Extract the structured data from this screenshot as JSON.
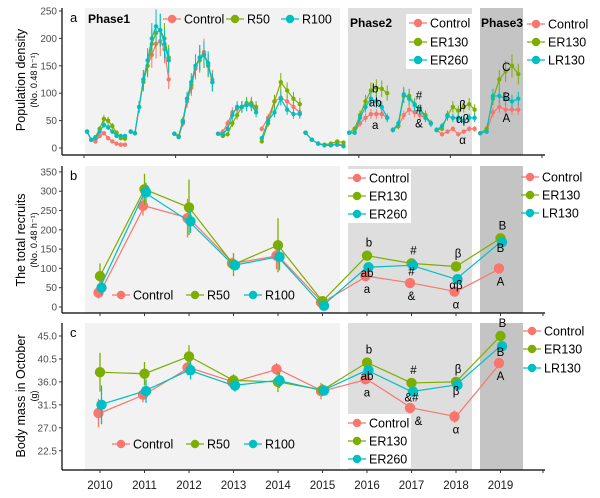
{
  "colors": {
    "Control": "#F8766D",
    "R50": "#7CAE00",
    "R100": "#00BFC4",
    "ER130": "#7CAE00",
    "ER260": "#00BFC4",
    "LR130": "#00BFC4"
  },
  "phase_backgrounds": [
    "#f2f2f2",
    "#dedede",
    "#c4c4c4"
  ],
  "years": [
    "2010",
    "2011",
    "2012",
    "2013",
    "2014",
    "2015",
    "2016",
    "2017",
    "2018",
    "2019"
  ],
  "chart_data": [
    {
      "panel": "a",
      "type": "line",
      "ylabel": "Population density",
      "ylabel_sub": "(No. 0.48 h⁻¹)",
      "ylim": [
        0,
        250
      ],
      "yticks": [
        "0",
        "50",
        "100",
        "150",
        "200",
        "250"
      ],
      "phases": [
        "Phase1",
        "Phase2",
        "Phase3"
      ],
      "legends": [
        [
          "Control",
          "R50",
          "R100"
        ],
        [
          "Control",
          "ER130",
          "ER260"
        ],
        [
          "Control",
          "ER130",
          "LR130"
        ]
      ],
      "by_year": [
        {
          "year": "2010",
          "series": [
            {
              "name": "Control",
              "values": [
                30,
                15,
                12,
                22,
                27,
                18,
                12,
                8,
                6,
                6
              ]
            },
            {
              "name": "R50",
              "values": [
                30,
                15,
                20,
                35,
                53,
                50,
                40,
                28,
                18,
                17
              ]
            },
            {
              "name": "R100",
              "values": [
                30,
                15,
                18,
                30,
                42,
                38,
                30,
                22,
                22,
                22
              ]
            }
          ]
        },
        {
          "year": "2011",
          "series": [
            {
              "name": "Control",
              "values": [
                30,
                27,
                75,
                125,
                150,
                170,
                190,
                195,
                180,
                125
              ]
            },
            {
              "name": "R50",
              "values": [
                30,
                27,
                75,
                120,
                150,
                190,
                210,
                215,
                200,
                165
              ]
            },
            {
              "name": "R100",
              "values": [
                30,
                27,
                75,
                125,
                160,
                200,
                222,
                215,
                190,
                160
              ]
            }
          ]
        },
        {
          "year": "2012",
          "series": [
            {
              "name": "Control",
              "values": [
                26,
                20,
                45,
                85,
                110,
                145,
                165,
                175,
                150,
                125
              ]
            },
            {
              "name": "R50",
              "values": [
                26,
                22,
                50,
                90,
                115,
                150,
                160,
                170,
                150,
                120
              ]
            },
            {
              "name": "R100",
              "values": [
                26,
                20,
                48,
                90,
                120,
                150,
                165,
                170,
                155,
                120
              ]
            }
          ]
        },
        {
          "year": "2013",
          "series": [
            {
              "name": "Control",
              "values": [
                26,
                30,
                45,
                65,
                72,
                75,
                80,
                80,
                70
              ]
            },
            {
              "name": "R50",
              "values": [
                26,
                22,
                25,
                45,
                60,
                75,
                82,
                82,
                75
              ]
            },
            {
              "name": "R100",
              "values": [
                26,
                25,
                35,
                60,
                75,
                75,
                78,
                78,
                65
              ]
            }
          ]
        },
        {
          "year": "2014",
          "series": [
            {
              "name": "Control",
              "values": [
                35,
                55,
                85,
                92,
                85,
                75,
                65
              ]
            },
            {
              "name": "R50",
              "values": [
                12,
                45,
                85,
                120,
                105,
                90,
                80
              ]
            },
            {
              "name": "R100",
              "values": [
                18,
                50,
                65,
                90,
                70,
                62,
                62
              ]
            }
          ]
        },
        {
          "year": "2015",
          "series": [
            {
              "name": "Control",
              "values": [
                28,
                15,
                8,
                5,
                5,
                8,
                5
              ]
            },
            {
              "name": "R50",
              "values": [
                28,
                15,
                8,
                6,
                8,
                12,
                10
              ]
            },
            {
              "name": "R100",
              "values": [
                28,
                15,
                8,
                5,
                5,
                6,
                3
              ]
            }
          ]
        },
        {
          "year": "2016",
          "series": [
            {
              "name": "Control",
              "values": [
                28,
                28,
                45,
                55,
                62,
                62,
                62,
                55
              ]
            },
            {
              "name": "ER130",
              "values": [
                28,
                35,
                60,
                85,
                105,
                110,
                108,
                100
              ]
            },
            {
              "name": "ER260",
              "values": [
                28,
                28,
                55,
                75,
                90,
                85,
                75,
                55
              ]
            }
          ]
        },
        {
          "year": "2017",
          "series": [
            {
              "name": "Control",
              "values": [
                33,
                40,
                60,
                70,
                65,
                60,
                55,
                45
              ]
            },
            {
              "name": "ER130",
              "values": [
                33,
                40,
                95,
                95,
                80,
                70,
                60,
                45
              ]
            },
            {
              "name": "ER260",
              "values": [
                33,
                45,
                98,
                90,
                78,
                70,
                55,
                45
              ]
            }
          ]
        },
        {
          "year": "2018",
          "series": [
            {
              "name": "Control",
              "values": [
                33,
                25,
                30,
                35,
                25,
                30,
                35,
                35
              ]
            },
            {
              "name": "ER130",
              "values": [
                33,
                35,
                60,
                75,
                68,
                75,
                80,
                70
              ]
            },
            {
              "name": "ER260",
              "values": [
                33,
                40,
                58,
                55,
                55,
                50,
                55,
                55
              ]
            }
          ]
        },
        {
          "year": "2019",
          "series": [
            {
              "name": "Control",
              "values": [
                27,
                30,
                65,
                75,
                70,
                70,
                70
              ]
            },
            {
              "name": "ER130",
              "values": [
                27,
                35,
                90,
                125,
                140,
                150,
                135
              ]
            },
            {
              "name": "LR130",
              "values": [
                27,
                30,
                95,
                95,
                90,
                85,
                90
              ]
            }
          ]
        }
      ],
      "letters": [
        {
          "year": "2016",
          "labels": [
            "a",
            "b",
            "ab"
          ]
        },
        {
          "year": "2017",
          "labels": [
            "&",
            "#",
            "#"
          ]
        },
        {
          "year": "2018",
          "labels": [
            "α",
            "β",
            "αβ"
          ]
        },
        {
          "year": "2019",
          "labels": [
            "A",
            "C",
            "B"
          ]
        }
      ]
    },
    {
      "panel": "b",
      "type": "line",
      "ylabel": "The total recruits",
      "ylabel_sub": "(No. 0.48 h⁻¹)",
      "ylim": [
        0,
        350
      ],
      "yticks": [
        "0",
        "50",
        "100",
        "150",
        "200",
        "250",
        "300",
        "350"
      ],
      "legends": [
        [
          "Control",
          "R50",
          "R100"
        ],
        [
          "Control",
          "ER130",
          "ER260"
        ],
        [
          "Control",
          "ER130",
          "LR130"
        ]
      ],
      "series": [
        {
          "names": [
            "Control",
            "Control",
            "Control"
          ],
          "values": [
            37,
            262,
            230,
            113,
            133,
            12,
            80,
            62,
            40,
            100
          ],
          "err": [
            15,
            25,
            50,
            15,
            35,
            8,
            8,
            6,
            6,
            6
          ]
        },
        {
          "names": [
            "R50",
            "ER130",
            "ER130"
          ],
          "values": [
            80,
            305,
            258,
            110,
            160,
            15,
            133,
            113,
            105,
            178
          ],
          "err": [
            33,
            40,
            72,
            30,
            70,
            10,
            8,
            8,
            10,
            12
          ]
        },
        {
          "names": [
            "R100",
            "ER260",
            "LR130"
          ],
          "values": [
            50,
            297,
            222,
            108,
            130,
            3,
            103,
            108,
            72,
            168
          ],
          "err": [
            20,
            25,
            30,
            12,
            35,
            5,
            8,
            8,
            10,
            8
          ]
        }
      ],
      "letters": [
        {
          "year": "2016",
          "labels": [
            "a",
            "b",
            "ab"
          ]
        },
        {
          "year": "2017",
          "labels": [
            "&",
            "#",
            "#"
          ]
        },
        {
          "year": "2018",
          "labels": [
            "α",
            "β",
            "αβ"
          ]
        },
        {
          "year": "2019",
          "labels": [
            "A",
            "B",
            "B"
          ]
        }
      ]
    },
    {
      "panel": "c",
      "type": "line",
      "ylabel": "Body mass in October",
      "ylabel_sub": "(g)",
      "ylim": [
        22.5,
        45
      ],
      "yticks": [
        "22.5",
        "27.0",
        "31.5",
        "36.0",
        "40.5",
        "45.0"
      ],
      "legends": [
        [
          "Control",
          "R50",
          "R100"
        ],
        [
          "Control",
          "ER130",
          "ER260"
        ],
        [
          "Control",
          "ER130",
          "LR130"
        ]
      ],
      "series": [
        {
          "names": [
            "Control",
            "Control",
            "Control"
          ],
          "values": [
            29.9,
            33.5,
            38.8,
            36.0,
            38.5,
            34.2,
            36.5,
            30.9,
            29.2,
            39.7
          ],
          "err": [
            2.8,
            1.5,
            1.5,
            0.8,
            1.2,
            1.6,
            0.5,
            0.8,
            1.2,
            0.8
          ]
        },
        {
          "names": [
            "R50",
            "ER130",
            "ER130"
          ],
          "values": [
            37.9,
            37.6,
            41.0,
            36.3,
            36.0,
            34.4,
            39.8,
            35.8,
            36.0,
            45.0
          ],
          "err": [
            3.8,
            2.3,
            2.2,
            1.2,
            2.0,
            1.2,
            0.6,
            0.6,
            0.6,
            0.6
          ]
        },
        {
          "names": [
            "R100",
            "ER260",
            "LR130"
          ],
          "values": [
            31.5,
            34.2,
            38.3,
            35.3,
            36.3,
            34.3,
            38.3,
            34.1,
            35.4,
            43.0
          ],
          "err": [
            3.8,
            2.3,
            1.8,
            1.2,
            1.5,
            0.8,
            0.5,
            0.5,
            0.5,
            0.5
          ]
        }
      ],
      "letters": [
        {
          "year": "2016",
          "labels": [
            "a",
            "b",
            "ab"
          ]
        },
        {
          "year": "2017",
          "labels": [
            "&",
            "#",
            "&#"
          ]
        },
        {
          "year": "2018",
          "labels": [
            "α",
            "β",
            "β"
          ]
        },
        {
          "year": "2019",
          "labels": [
            "A",
            "B",
            "B"
          ]
        }
      ]
    }
  ]
}
